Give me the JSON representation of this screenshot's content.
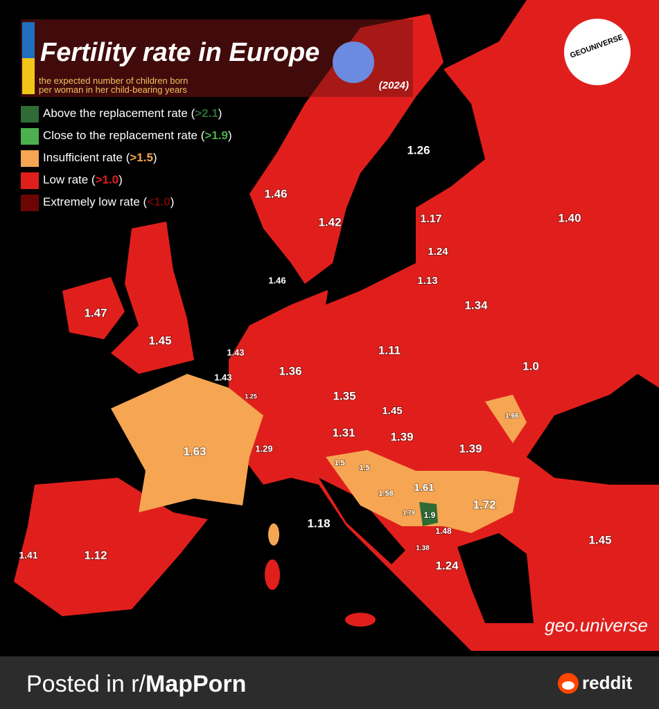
{
  "header": {
    "title": "Fertility rate in Europe",
    "subtitle": [
      "the expected number of children born",
      "per woman in her child-bearing years"
    ],
    "year": "(2024)"
  },
  "logo": "GEOUNIVERSE",
  "legend": [
    {
      "label": "Above the replacement rate (",
      "threshold": ">2.1",
      "close": ")",
      "color": "#2f6b35"
    },
    {
      "label": "Close to the replacement rate (",
      "threshold": ">1.9",
      "close": ")",
      "color": "#4db04f"
    },
    {
      "label": "Insufficient rate (",
      "threshold": ">1.5",
      "close": ")",
      "color": "#f6a552"
    },
    {
      "label": "Low rate (",
      "threshold": ">1.0",
      "close": ")",
      "color": "#e01f1c"
    },
    {
      "label": "Extremely low rate (",
      "threshold": "<1.0",
      "close": ")",
      "color": "#6e0505"
    }
  ],
  "labels": [
    "1.26",
    "1.46",
    "1.42",
    "1.17",
    "1.40",
    "1.24",
    "1.46",
    "1.13",
    "1.47",
    "1.34",
    "1.45",
    "1.43",
    "1.11",
    "1.36",
    "1.0",
    "1.43",
    "1.25",
    "1.35",
    "1.45",
    "1.66",
    "1.63",
    "1.31",
    "1.39",
    "1.29",
    "1.39",
    "1.5",
    "1.5",
    "1.58",
    "1.61",
    "1.72",
    "1.79",
    "1.9",
    "1.18",
    "1.48",
    "1.45",
    "1.38",
    "1.41",
    "1.12",
    "1.24"
  ],
  "watermark": "geo.universe",
  "footer": {
    "prefix": "Posted in r/",
    "subreddit": "MapPorn",
    "brand": "reddit"
  }
}
